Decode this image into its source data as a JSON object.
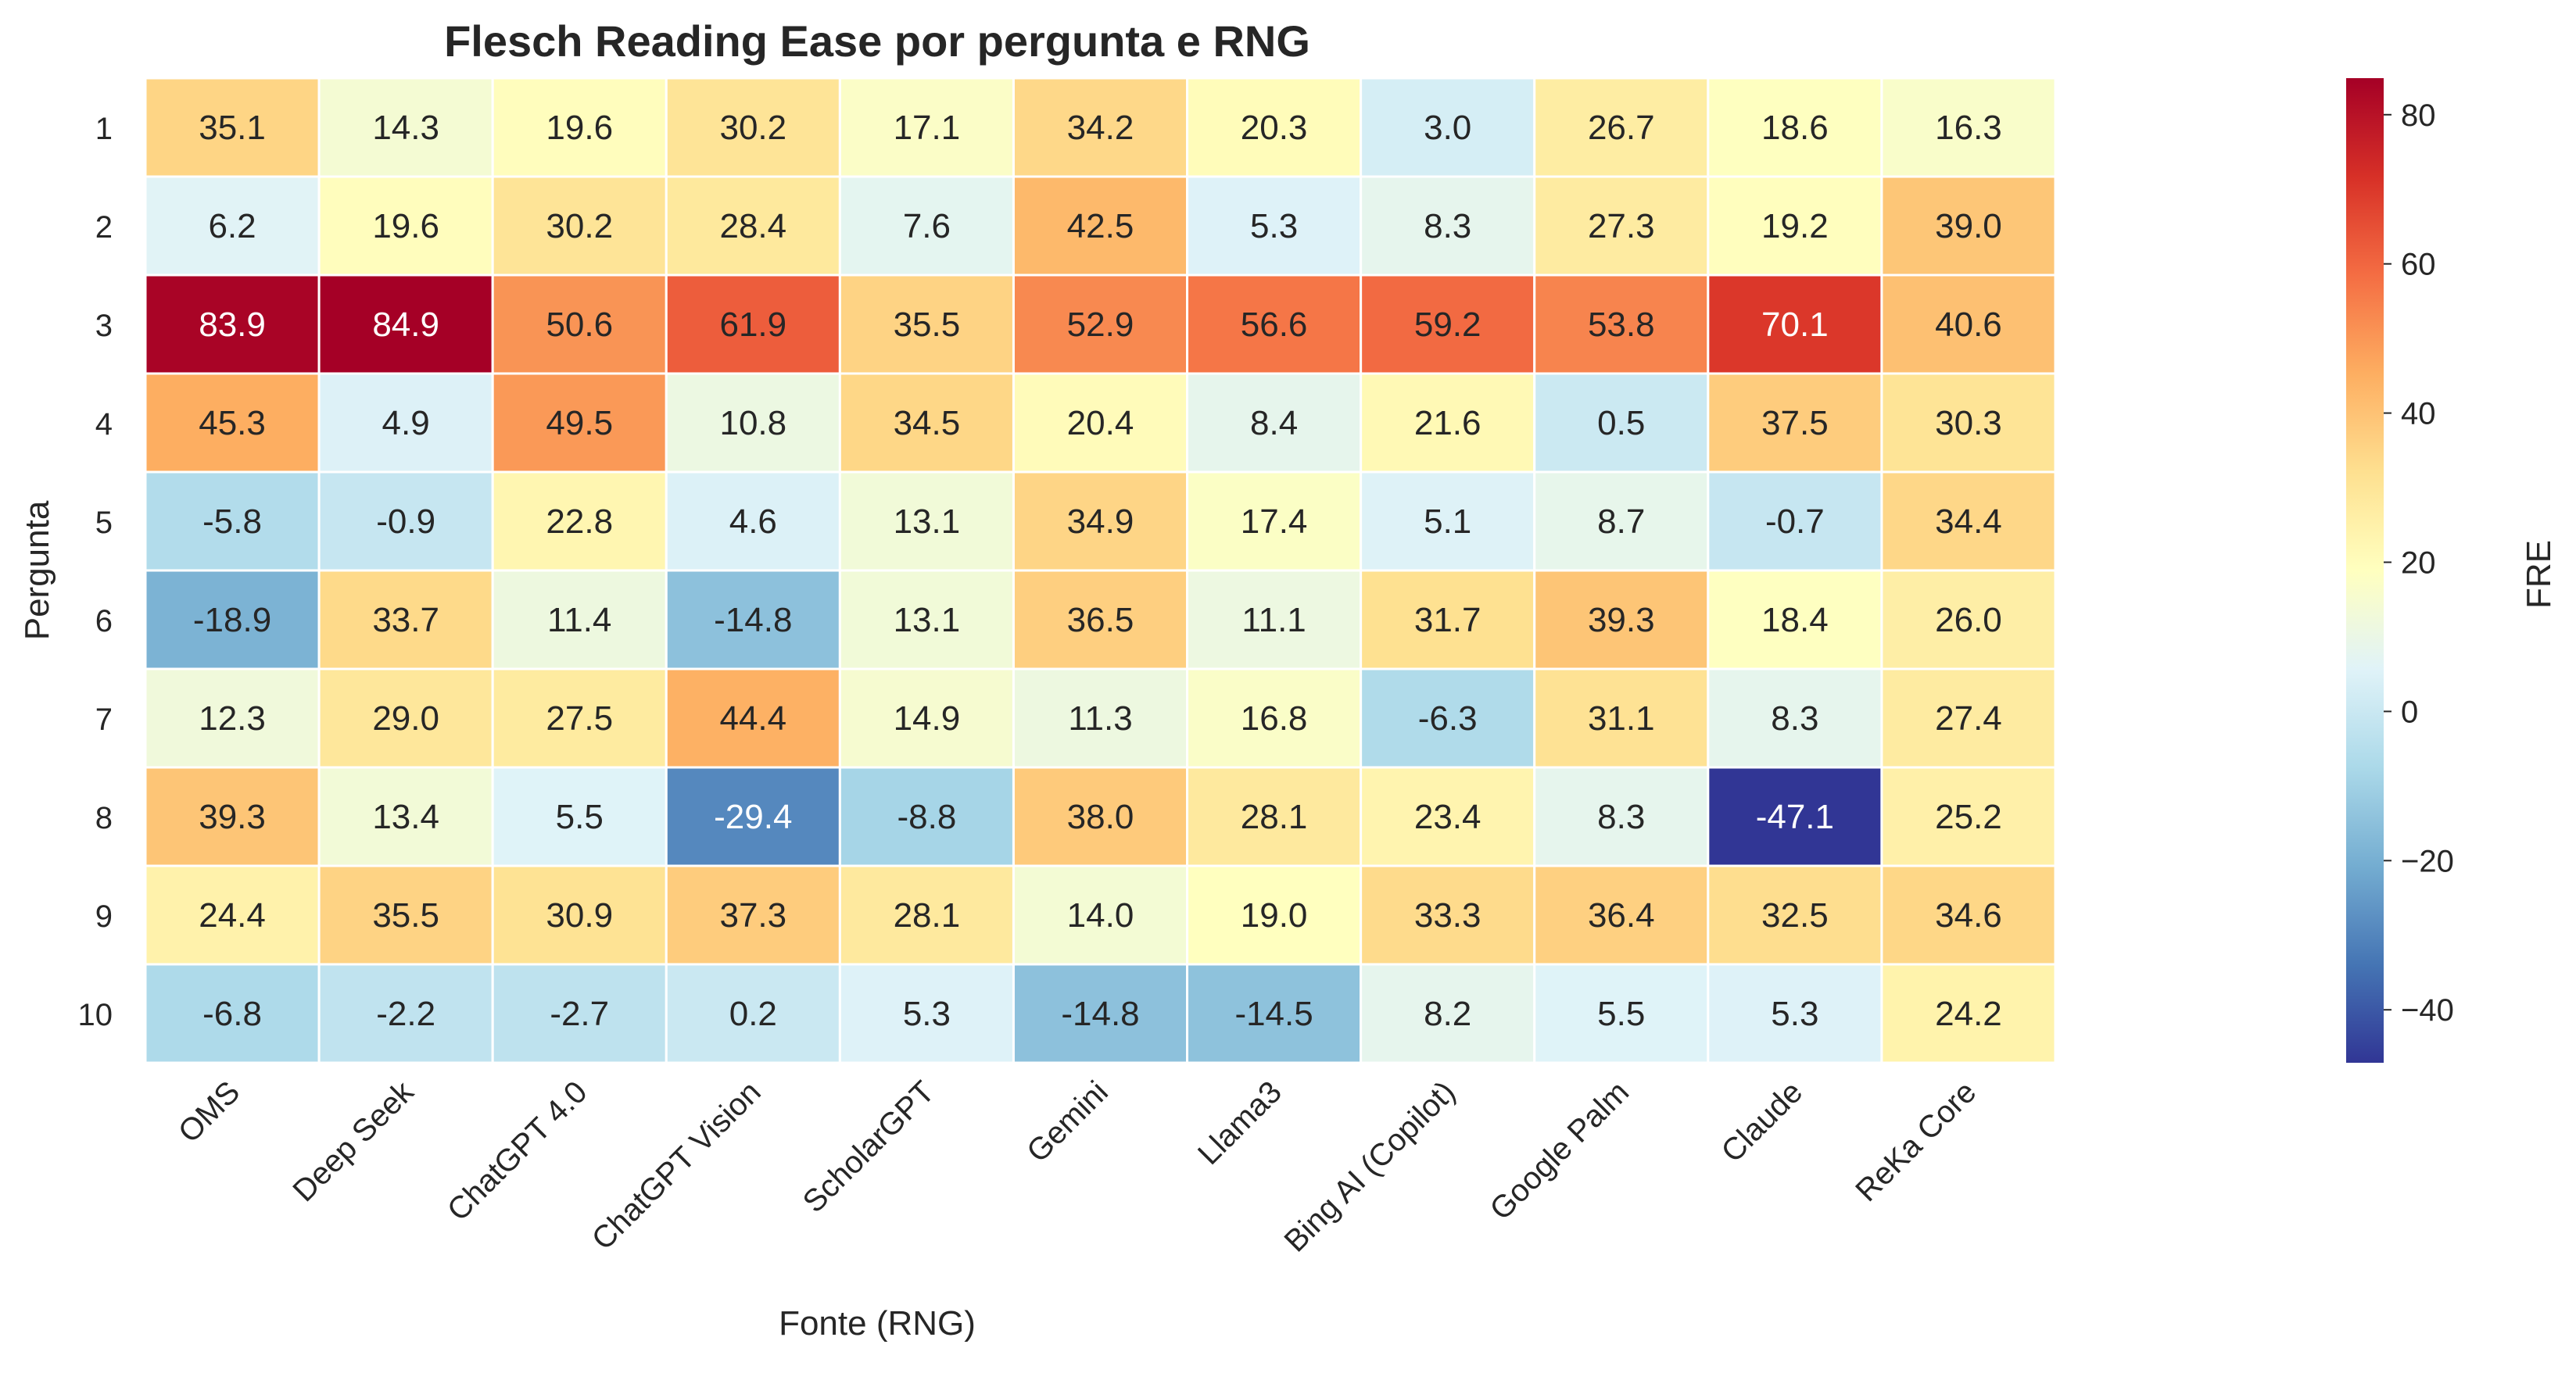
{
  "chart_data": {
    "type": "heatmap",
    "title": "Flesch Reading Ease por pergunta e RNG",
    "xlabel": "Fonte (RNG)",
    "ylabel": "Pergunta",
    "colorbar_label": "FRE",
    "colormap": "RdYlBu_r",
    "vmin": -47.1,
    "vmax": 84.9,
    "colorbar_ticks": [
      80,
      60,
      40,
      20,
      0,
      -20,
      -40
    ],
    "colorbar_tick_labels": [
      "80",
      "60",
      "40",
      "20",
      "0",
      "−20",
      "−40"
    ],
    "columns": [
      "OMS",
      "Deep Seek",
      "ChatGPT 4.0",
      "ChatGPT Vision",
      "ScholarGPT",
      "Gemini",
      "Llama3",
      "Bing AI (Copilot)",
      "Google Palm",
      "Claude",
      "ReKa Core"
    ],
    "rows": [
      "1",
      "2",
      "3",
      "4",
      "5",
      "6",
      "7",
      "8",
      "9",
      "10"
    ],
    "values": [
      [
        35.1,
        14.3,
        19.6,
        30.2,
        17.1,
        34.2,
        20.3,
        3.0,
        26.7,
        18.6,
        16.3
      ],
      [
        6.2,
        19.6,
        30.2,
        28.4,
        7.6,
        42.5,
        5.3,
        8.3,
        27.3,
        19.2,
        39.0
      ],
      [
        83.9,
        84.9,
        50.6,
        61.9,
        35.5,
        52.9,
        56.6,
        59.2,
        53.8,
        70.1,
        40.6
      ],
      [
        45.3,
        4.9,
        49.5,
        10.8,
        34.5,
        20.4,
        8.4,
        21.6,
        0.5,
        37.5,
        30.3
      ],
      [
        -5.8,
        -0.9,
        22.8,
        4.6,
        13.1,
        34.9,
        17.4,
        5.1,
        8.7,
        -0.7,
        34.4
      ],
      [
        -18.9,
        33.7,
        11.4,
        -14.8,
        13.1,
        36.5,
        11.1,
        31.7,
        39.3,
        18.4,
        26.0
      ],
      [
        12.3,
        29.0,
        27.5,
        44.4,
        14.9,
        11.3,
        16.8,
        -6.3,
        31.1,
        8.3,
        27.4
      ],
      [
        39.3,
        13.4,
        5.5,
        -29.4,
        -8.8,
        38.0,
        28.1,
        23.4,
        8.3,
        -47.1,
        25.2
      ],
      [
        24.4,
        35.5,
        30.9,
        37.3,
        28.1,
        14.0,
        19.0,
        33.3,
        36.4,
        32.5,
        34.6
      ],
      [
        -6.8,
        -2.2,
        -2.7,
        0.2,
        5.3,
        -14.8,
        -14.5,
        8.2,
        5.5,
        5.3,
        24.2
      ]
    ]
  }
}
